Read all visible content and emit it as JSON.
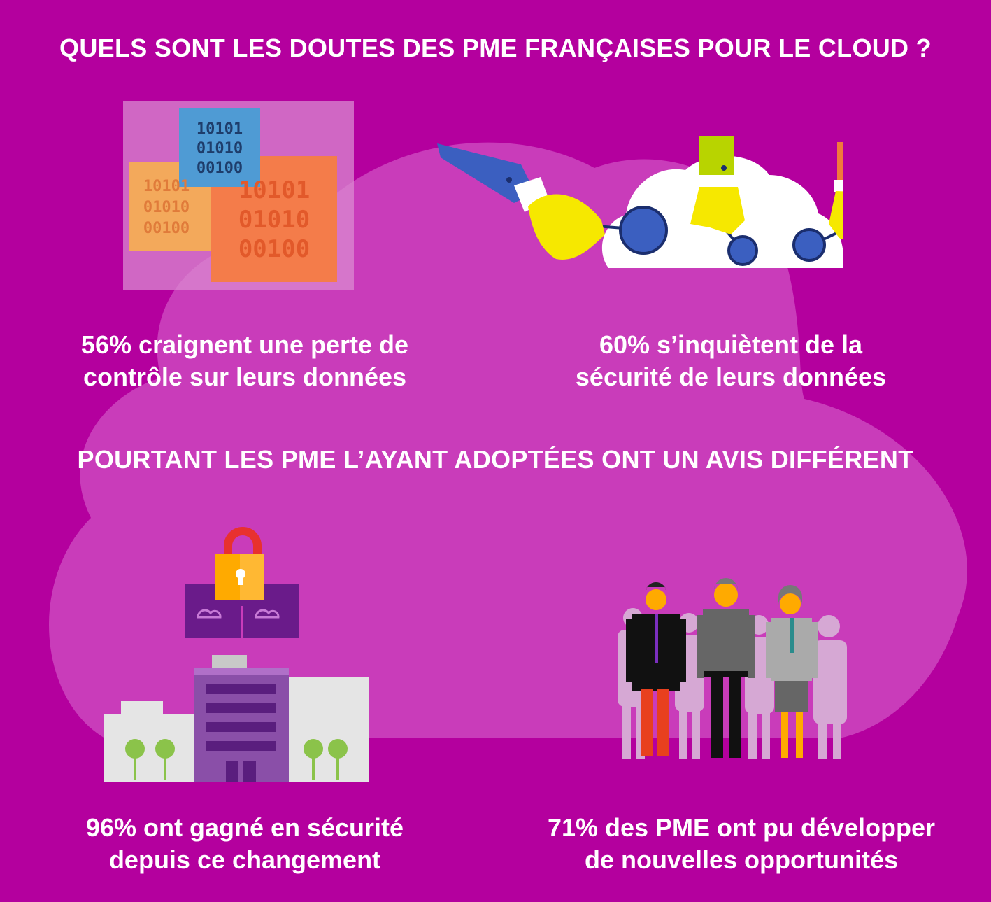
{
  "heading_top": "QUELS SONT LES DOUTES DES PME FRANÇAISES POUR LE CLOUD ?",
  "heading_middle": "POURTANT LES PME L’AYANT ADOPTÉES ONT UN AVIS DIFFÉRENT",
  "stats": [
    {
      "lines": [
        "56% craignent une perte de",
        "contrôle sur leurs données"
      ],
      "icon": "binary-data-icon"
    },
    {
      "lines": [
        "60% s’inquiètent de la",
        "sécurité de leurs données"
      ],
      "icon": "hands-cloud-network-icon"
    },
    {
      "lines": [
        "96% ont gagné en sécurité",
        "depuis ce changement"
      ],
      "icon": "padlock-building-icon"
    },
    {
      "lines": [
        "71% des PME ont pu développer",
        "de nouvelles opportunités"
      ],
      "icon": "business-people-icon"
    }
  ],
  "binary_blocks": [
    [
      "10101",
      "01010",
      "00100"
    ],
    [
      "10101",
      "01010",
      "00100"
    ],
    [
      "10101",
      "01010",
      "00100"
    ]
  ],
  "colors": {
    "background": "#b4009e",
    "cloud": "#c93cba",
    "blue": "#4d8fcf",
    "yellow": "#f6e800",
    "orange": "#f07a3c",
    "navy": "#3b5fc0",
    "lock": "#ffaa00"
  }
}
